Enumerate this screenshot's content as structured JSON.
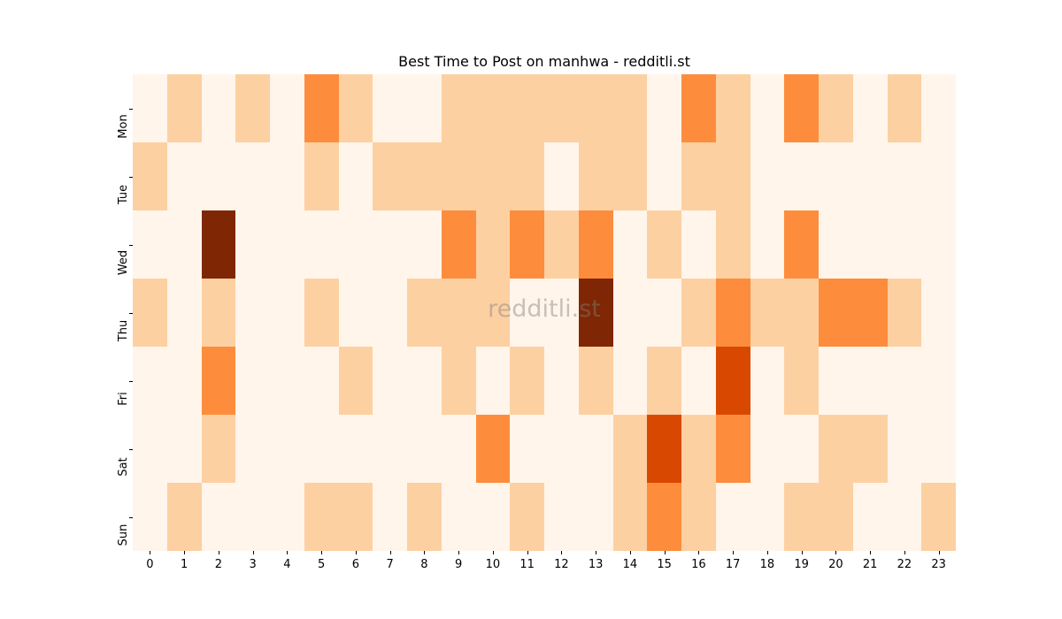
{
  "chart_data": {
    "type": "heatmap",
    "title": "Best Time to Post on manhwa - redditli.st",
    "xlabel": "",
    "ylabel": "",
    "x": [
      "0",
      "1",
      "2",
      "3",
      "4",
      "5",
      "6",
      "7",
      "8",
      "9",
      "10",
      "11",
      "12",
      "13",
      "14",
      "15",
      "16",
      "17",
      "18",
      "19",
      "20",
      "21",
      "22",
      "23"
    ],
    "y": [
      "Mon",
      "Tue",
      "Wed",
      "Thu",
      "Fri",
      "Sat",
      "Sun"
    ],
    "values": [
      [
        0,
        1,
        0,
        1,
        0,
        2,
        1,
        0,
        0,
        1,
        1,
        1,
        1,
        1,
        1,
        0,
        2,
        1,
        0,
        2,
        1,
        0,
        1,
        0
      ],
      [
        1,
        0,
        0,
        0,
        0,
        1,
        0,
        1,
        1,
        1,
        1,
        1,
        0,
        1,
        1,
        0,
        1,
        1,
        0,
        0,
        0,
        0,
        0,
        0
      ],
      [
        0,
        0,
        4,
        0,
        0,
        0,
        0,
        0,
        0,
        2,
        1,
        2,
        1,
        2,
        0,
        1,
        0,
        1,
        0,
        2,
        0,
        0,
        0,
        0
      ],
      [
        1,
        0,
        1,
        0,
        0,
        1,
        0,
        0,
        1,
        1,
        1,
        0,
        0,
        4,
        0,
        0,
        1,
        2,
        1,
        1,
        2,
        2,
        1,
        0
      ],
      [
        0,
        0,
        2,
        0,
        0,
        0,
        1,
        0,
        0,
        1,
        0,
        1,
        0,
        1,
        0,
        1,
        0,
        3,
        0,
        1,
        0,
        0,
        0,
        0
      ],
      [
        0,
        0,
        1,
        0,
        0,
        0,
        0,
        0,
        0,
        0,
        2,
        0,
        0,
        0,
        1,
        3,
        1,
        2,
        0,
        0,
        1,
        1,
        0,
        0
      ],
      [
        0,
        1,
        0,
        0,
        0,
        1,
        1,
        0,
        1,
        0,
        0,
        1,
        0,
        0,
        1,
        2,
        1,
        0,
        0,
        1,
        1,
        0,
        0,
        1
      ]
    ],
    "value_range": [
      0,
      4
    ],
    "colormap": [
      "#fff5eb",
      "#fdd0a2",
      "#fd8d3c",
      "#d94801",
      "#7f2704"
    ],
    "grid": false,
    "legend": "none",
    "watermark": "redditli.st"
  }
}
